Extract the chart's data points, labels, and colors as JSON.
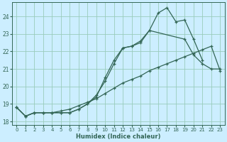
{
  "xlabel": "Humidex (Indice chaleur)",
  "bg_color": "#cceeff",
  "grid_color": "#99ccbb",
  "line_color": "#336655",
  "xlim": [
    -0.5,
    23.5
  ],
  "ylim": [
    17.8,
    24.8
  ],
  "yticks": [
    18,
    19,
    20,
    21,
    22,
    23,
    24
  ],
  "xticks": [
    0,
    1,
    2,
    3,
    4,
    5,
    6,
    7,
    8,
    9,
    10,
    11,
    12,
    13,
    14,
    15,
    16,
    17,
    18,
    19,
    20,
    21,
    22,
    23
  ],
  "lines": [
    {
      "x": [
        0,
        1,
        2,
        3,
        4,
        5,
        6,
        7,
        8,
        9,
        10,
        11,
        12,
        13,
        14,
        15,
        16,
        17,
        18,
        19,
        20,
        21
      ],
      "y": [
        18.8,
        18.3,
        18.5,
        18.5,
        18.5,
        18.5,
        18.5,
        18.7,
        19.0,
        19.4,
        20.5,
        21.5,
        22.2,
        22.3,
        22.6,
        23.2,
        24.2,
        24.5,
        23.7,
        23.8,
        22.7,
        21.5
      ]
    },
    {
      "x": [
        0,
        1,
        2,
        3,
        4,
        5,
        6,
        7,
        8,
        9,
        10,
        11,
        12,
        13,
        14,
        15,
        19,
        20,
        21,
        22,
        23
      ],
      "y": [
        18.8,
        18.3,
        18.5,
        18.5,
        18.5,
        18.5,
        18.5,
        18.7,
        19.0,
        19.5,
        20.3,
        21.3,
        22.2,
        22.3,
        22.5,
        23.2,
        22.7,
        21.8,
        21.3,
        21.0,
        21.0
      ]
    },
    {
      "x": [
        0,
        1,
        2,
        3,
        4,
        5,
        6,
        7,
        8,
        9,
        10,
        11,
        12,
        13,
        14,
        15,
        16,
        17,
        18,
        19,
        20,
        21,
        22,
        23
      ],
      "y": [
        18.8,
        18.3,
        18.5,
        18.5,
        18.5,
        18.6,
        18.7,
        18.9,
        19.1,
        19.3,
        19.6,
        19.9,
        20.2,
        20.4,
        20.6,
        20.9,
        21.1,
        21.3,
        21.5,
        21.7,
        21.9,
        22.1,
        22.3,
        20.9
      ]
    }
  ]
}
